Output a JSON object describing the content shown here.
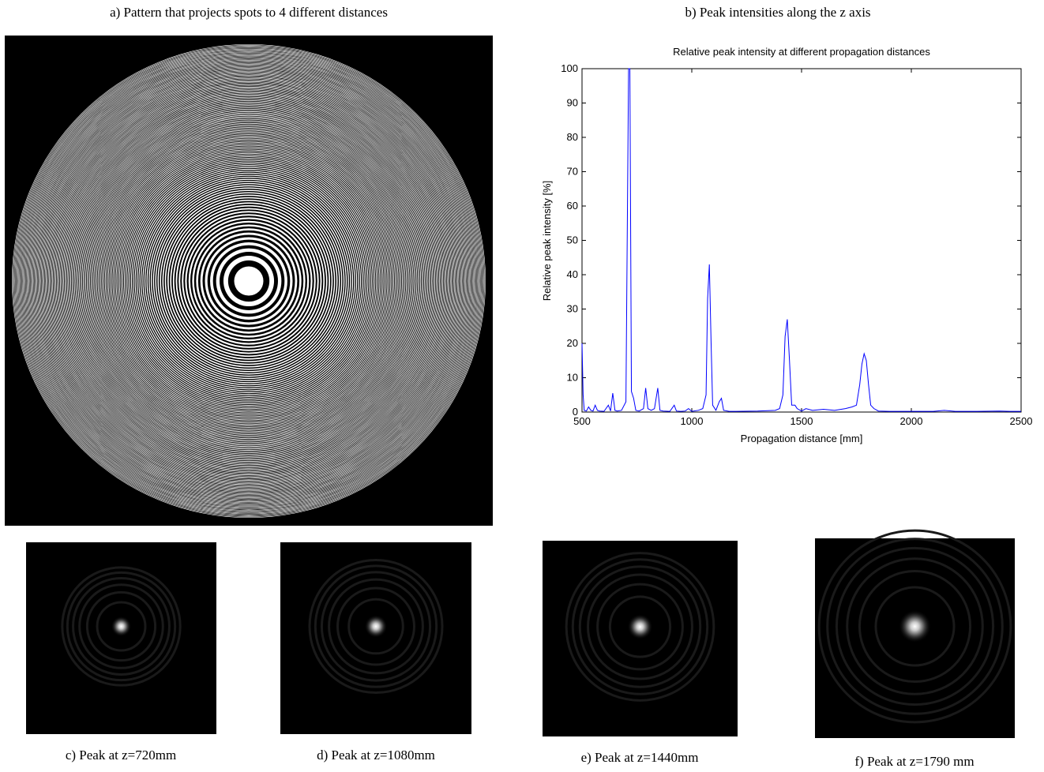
{
  "panels": [
    {
      "caption": "a) Pattern that projects spots to 4 different distances"
    },
    {
      "caption": "b) Peak intensities along the z axis"
    },
    {
      "caption": "c) Peak at z=720mm"
    },
    {
      "caption": "d) Peak at z=1080mm"
    },
    {
      "caption": "e) Peak at z=1440mm"
    },
    {
      "caption": "f) Peak at z=1790 mm"
    }
  ],
  "chart_data": {
    "type": "line",
    "title": "Relative peak intensity at different propagation distances",
    "x_label": "Propagation distance [mm]",
    "y_label": "Relative peak intensity [%]",
    "color": "#0000ff",
    "x": [
      500,
      505,
      510,
      520,
      530,
      540,
      550,
      560,
      570,
      580,
      600,
      620,
      630,
      640,
      650,
      660,
      680,
      700,
      712,
      718,
      725,
      735,
      745,
      760,
      780,
      790,
      800,
      815,
      830,
      845,
      855,
      870,
      900,
      920,
      930,
      950,
      970,
      985,
      1000,
      1030,
      1050,
      1065,
      1072,
      1080,
      1088,
      1095,
      1110,
      1125,
      1135,
      1145,
      1170,
      1200,
      1300,
      1380,
      1400,
      1415,
      1425,
      1435,
      1445,
      1455,
      1470,
      1480,
      1500,
      1520,
      1550,
      1600,
      1650,
      1700,
      1730,
      1750,
      1765,
      1775,
      1785,
      1795,
      1805,
      1815,
      1830,
      1850,
      1900,
      2000,
      2100,
      2150,
      2200,
      2300,
      2400,
      2450,
      2500
    ],
    "values": [
      20,
      5,
      0.5,
      0.3,
      1.5,
      0.5,
      0.3,
      2,
      0.5,
      0.3,
      0.2,
      2,
      0.3,
      5.5,
      0.5,
      0.3,
      0.5,
      3,
      100,
      100,
      6,
      4,
      0.5,
      0.3,
      1,
      7,
      1,
      0.5,
      1,
      7,
      0.5,
      0.3,
      0.2,
      2,
      0.3,
      0.2,
      0.3,
      1,
      0.2,
      0.5,
      1,
      5,
      33,
      43,
      20,
      2,
      0.5,
      3,
      4,
      0.5,
      0.2,
      0.2,
      0.3,
      0.5,
      1,
      5,
      22,
      27,
      15,
      2,
      2,
      1,
      0.3,
      1,
      0.5,
      0.8,
      0.5,
      1,
      1.5,
      2,
      8,
      14,
      17,
      15,
      8,
      2,
      1,
      0.3,
      0.2,
      0.2,
      0.2,
      0.5,
      0.2,
      0.2,
      0.3,
      0.2,
      0.2
    ],
    "xlim": [
      500,
      2500
    ],
    "ylim": [
      0,
      100
    ],
    "xticks": [
      500,
      1000,
      1500,
      2000,
      2500
    ],
    "yticks": [
      0,
      10,
      20,
      30,
      40,
      50,
      60,
      70,
      80,
      90,
      100
    ]
  }
}
